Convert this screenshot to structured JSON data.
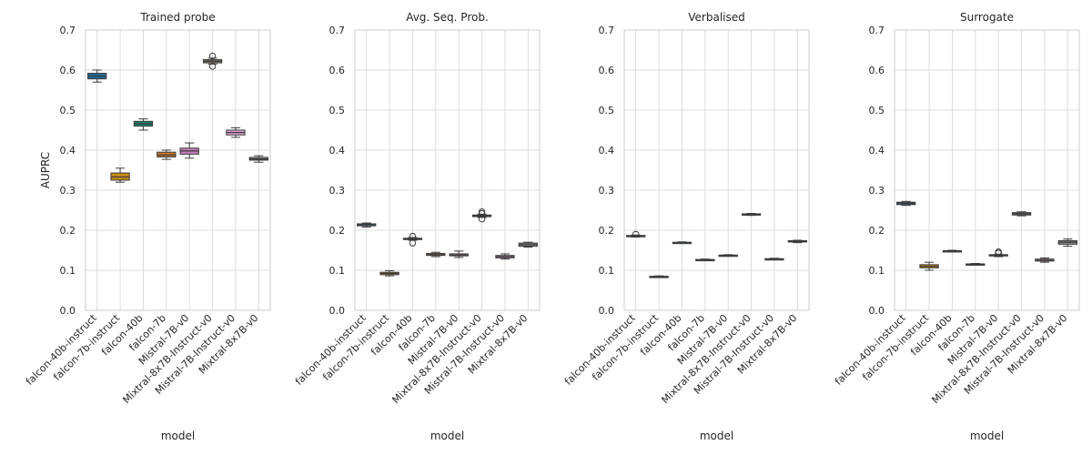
{
  "chart_data": {
    "type": "box",
    "ylim": [
      0,
      0.7
    ],
    "yticks": [
      0.0,
      0.1,
      0.2,
      0.3,
      0.4,
      0.5,
      0.6,
      0.7
    ],
    "ytick_labels": [
      "0.0",
      "0.1",
      "0.2",
      "0.3",
      "0.4",
      "0.5",
      "0.6",
      "0.7"
    ],
    "xlabel": "model",
    "ylabel": "AUPRC",
    "grid": true,
    "categories": [
      "falcon-40b-instruct",
      "falcon-7b-instruct",
      "falcon-40b",
      "falcon-7b",
      "Mistral-7B-v0",
      "Mixtral-8x7B-Instruct-v0",
      "Mistral-7B-Instruct-v0",
      "Mixtral-8x7B-v0"
    ],
    "colors": [
      "#1f6e9c",
      "#c98a1b",
      "#14876a",
      "#c97a2e",
      "#c57bb8",
      "#8a7a66",
      "#e09ed0",
      "#8c8c8c"
    ],
    "panels": [
      {
        "title": "Trained probe",
        "boxes": [
          {
            "min": 0.57,
            "q1": 0.578,
            "median": 0.585,
            "q3": 0.592,
            "max": 0.6,
            "outliers": []
          },
          {
            "min": 0.32,
            "q1": 0.325,
            "median": 0.333,
            "q3": 0.343,
            "max": 0.355,
            "outliers": []
          },
          {
            "min": 0.45,
            "q1": 0.46,
            "median": 0.466,
            "q3": 0.472,
            "max": 0.478,
            "outliers": []
          },
          {
            "min": 0.377,
            "q1": 0.383,
            "median": 0.388,
            "q3": 0.395,
            "max": 0.4,
            "outliers": []
          },
          {
            "min": 0.38,
            "q1": 0.39,
            "median": 0.398,
            "q3": 0.405,
            "max": 0.418,
            "outliers": []
          },
          {
            "min": 0.615,
            "q1": 0.618,
            "median": 0.622,
            "q3": 0.626,
            "max": 0.63,
            "outliers": [
              0.635,
              0.609
            ]
          },
          {
            "min": 0.432,
            "q1": 0.438,
            "median": 0.444,
            "q3": 0.45,
            "max": 0.456,
            "outliers": []
          },
          {
            "min": 0.37,
            "q1": 0.375,
            "median": 0.378,
            "q3": 0.382,
            "max": 0.386,
            "outliers": []
          }
        ]
      },
      {
        "title": "Avg. Seq. Prob.",
        "boxes": [
          {
            "min": 0.208,
            "q1": 0.211,
            "median": 0.213,
            "q3": 0.216,
            "max": 0.218,
            "outliers": []
          },
          {
            "min": 0.086,
            "q1": 0.089,
            "median": 0.092,
            "q3": 0.095,
            "max": 0.099,
            "outliers": []
          },
          {
            "min": 0.175,
            "q1": 0.177,
            "median": 0.178,
            "q3": 0.18,
            "max": 0.182,
            "outliers": [
              0.185,
              0.168
            ]
          },
          {
            "min": 0.134,
            "q1": 0.137,
            "median": 0.139,
            "q3": 0.142,
            "max": 0.145,
            "outliers": []
          },
          {
            "min": 0.132,
            "q1": 0.136,
            "median": 0.138,
            "q3": 0.141,
            "max": 0.148,
            "outliers": []
          },
          {
            "min": 0.232,
            "q1": 0.234,
            "median": 0.236,
            "q3": 0.238,
            "max": 0.24,
            "outliers": [
              0.246,
              0.242,
              0.228
            ]
          },
          {
            "min": 0.128,
            "q1": 0.131,
            "median": 0.134,
            "q3": 0.137,
            "max": 0.141,
            "outliers": []
          },
          {
            "min": 0.158,
            "q1": 0.16,
            "median": 0.164,
            "q3": 0.168,
            "max": 0.17,
            "outliers": []
          }
        ]
      },
      {
        "title": "Verbalised",
        "boxes": [
          {
            "min": 0.183,
            "q1": 0.184,
            "median": 0.185,
            "q3": 0.187,
            "max": 0.188,
            "outliers": [
              0.19
            ]
          },
          {
            "min": 0.082,
            "q1": 0.083,
            "median": 0.084,
            "q3": 0.085,
            "max": 0.086,
            "outliers": []
          },
          {
            "min": 0.167,
            "q1": 0.168,
            "median": 0.169,
            "q3": 0.17,
            "max": 0.171,
            "outliers": []
          },
          {
            "min": 0.124,
            "q1": 0.125,
            "median": 0.126,
            "q3": 0.127,
            "max": 0.128,
            "outliers": []
          },
          {
            "min": 0.135,
            "q1": 0.136,
            "median": 0.137,
            "q3": 0.138,
            "max": 0.139,
            "outliers": []
          },
          {
            "min": 0.237,
            "q1": 0.238,
            "median": 0.239,
            "q3": 0.241,
            "max": 0.242,
            "outliers": []
          },
          {
            "min": 0.126,
            "q1": 0.127,
            "median": 0.128,
            "q3": 0.129,
            "max": 0.13,
            "outliers": []
          },
          {
            "min": 0.169,
            "q1": 0.171,
            "median": 0.172,
            "q3": 0.174,
            "max": 0.175,
            "outliers": []
          }
        ]
      },
      {
        "title": "Surrogate",
        "boxes": [
          {
            "min": 0.262,
            "q1": 0.264,
            "median": 0.267,
            "q3": 0.27,
            "max": 0.272,
            "outliers": []
          },
          {
            "min": 0.1,
            "q1": 0.106,
            "median": 0.11,
            "q3": 0.114,
            "max": 0.12,
            "outliers": []
          },
          {
            "min": 0.146,
            "q1": 0.147,
            "median": 0.148,
            "q3": 0.149,
            "max": 0.15,
            "outliers": []
          },
          {
            "min": 0.113,
            "q1": 0.114,
            "median": 0.115,
            "q3": 0.116,
            "max": 0.117,
            "outliers": []
          },
          {
            "min": 0.134,
            "q1": 0.136,
            "median": 0.137,
            "q3": 0.139,
            "max": 0.14,
            "outliers": [
              0.146,
              0.143
            ]
          },
          {
            "min": 0.236,
            "q1": 0.238,
            "median": 0.241,
            "q3": 0.244,
            "max": 0.246,
            "outliers": []
          },
          {
            "min": 0.12,
            "q1": 0.123,
            "median": 0.125,
            "q3": 0.128,
            "max": 0.131,
            "outliers": []
          },
          {
            "min": 0.16,
            "q1": 0.165,
            "median": 0.17,
            "q3": 0.174,
            "max": 0.178,
            "outliers": []
          }
        ]
      }
    ]
  }
}
